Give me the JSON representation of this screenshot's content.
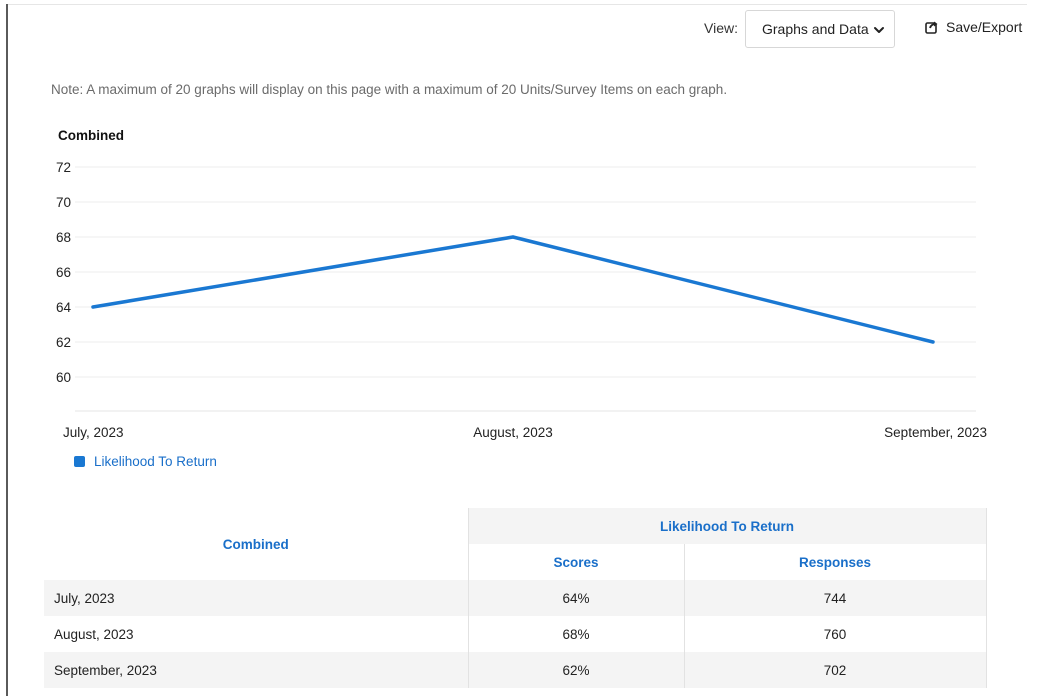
{
  "toolbar": {
    "view_label": "View:",
    "view_selected": "Graphs and Data",
    "export_label": "Save/Export"
  },
  "note": "Note: A maximum of 20 graphs will display on this page with a maximum of 20 Units/Survey Items on each graph.",
  "colors": {
    "series": "#1a78d2",
    "accent_text": "#1a6fc9"
  },
  "chart_data": {
    "type": "line",
    "title": "Combined",
    "xlabel": "",
    "ylabel": "",
    "categories": [
      "July, 2023",
      "August, 2023",
      "September, 2023"
    ],
    "yticks": [
      72,
      70,
      68,
      66,
      64,
      62,
      60
    ],
    "ylim": [
      58,
      72
    ],
    "grid": true,
    "legend_position": "bottom-left",
    "series": [
      {
        "name": "Likelihood To Return",
        "values": [
          64,
          68,
          62
        ]
      }
    ]
  },
  "table": {
    "corner_header": "Combined",
    "group_header": "Likelihood To Return",
    "sub_headers": [
      "Scores",
      "Responses"
    ],
    "rows": [
      {
        "label": "July, 2023",
        "score": "64%",
        "responses": "744"
      },
      {
        "label": "August, 2023",
        "score": "68%",
        "responses": "760"
      },
      {
        "label": "September, 2023",
        "score": "62%",
        "responses": "702"
      }
    ]
  }
}
